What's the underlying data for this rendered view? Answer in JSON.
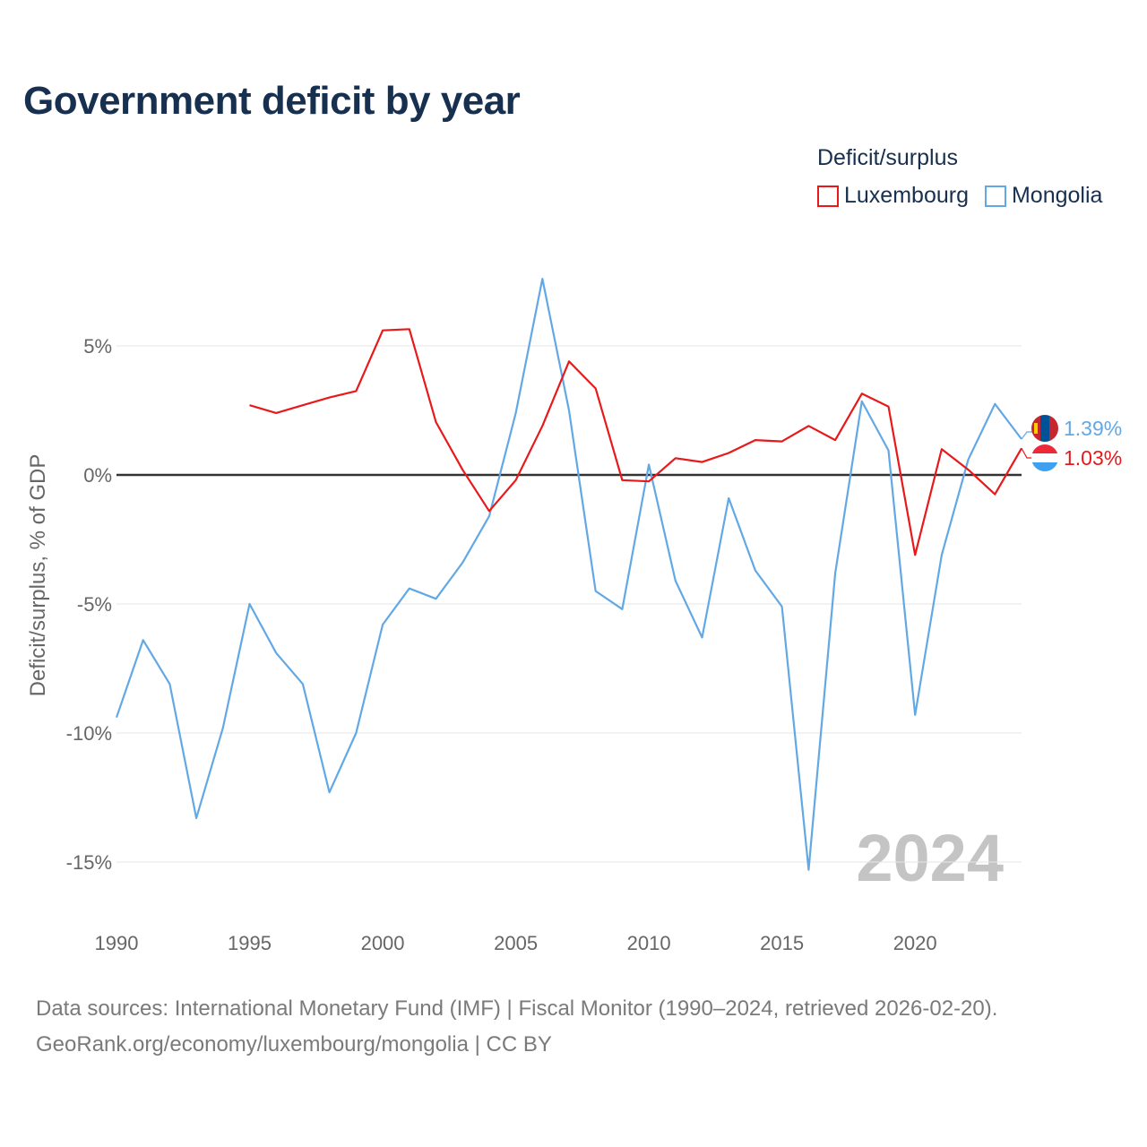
{
  "title": "Government deficit by year",
  "legend": {
    "title": "Deficit/surplus",
    "items": [
      {
        "label": "Luxembourg",
        "color": "#e8191a"
      },
      {
        "label": "Mongolia",
        "color": "#62a8e5"
      }
    ]
  },
  "footer": {
    "line1": "Data sources: International Monetary Fund (IMF) | Fiscal Monitor (1990–2024, retrieved 2026-02-20).",
    "line2": "GeoRank.org/economy/luxembourg/mongolia | CC BY"
  },
  "chart_data": {
    "type": "line",
    "ylabel": "Deficit/surplus, % of GDP",
    "xlabel": "",
    "xlim": [
      1990,
      2024
    ],
    "ylim": [
      -17,
      8
    ],
    "x_ticks": [
      1990,
      1995,
      2000,
      2005,
      2010,
      2015,
      2020
    ],
    "x_tick_labels": [
      "1990",
      "1995",
      "2000",
      "2005",
      "2010",
      "2015",
      "2020"
    ],
    "y_ticks": [
      5,
      0,
      -5,
      -10,
      -15
    ],
    "y_tick_labels": [
      "5%",
      "0%",
      "-5%",
      "-10%",
      "-15%"
    ],
    "watermark": "2024",
    "series": [
      {
        "name": "Luxembourg",
        "color": "#e8191a",
        "x": [
          1995,
          1996,
          1997,
          1998,
          1999,
          2000,
          2001,
          2002,
          2003,
          2004,
          2005,
          2006,
          2007,
          2008,
          2009,
          2010,
          2011,
          2012,
          2013,
          2014,
          2015,
          2016,
          2017,
          2018,
          2019,
          2020,
          2021,
          2022,
          2023,
          2024
        ],
        "values": [
          2.7,
          2.4,
          2.7,
          3.0,
          3.25,
          5.6,
          5.65,
          2.05,
          0.2,
          -1.4,
          -0.2,
          1.9,
          4.4,
          3.35,
          -0.2,
          -0.25,
          0.65,
          0.5,
          0.85,
          1.35,
          1.3,
          1.9,
          1.35,
          3.15,
          2.65,
          -3.1,
          1.0,
          0.2,
          -0.75,
          1.03
        ],
        "end_label": "1.03%"
      },
      {
        "name": "Mongolia",
        "color": "#62a8e5",
        "x": [
          1990,
          1991,
          1992,
          1993,
          1994,
          1995,
          1996,
          1997,
          1998,
          1999,
          2000,
          2001,
          2002,
          2003,
          2004,
          2005,
          2006,
          2007,
          2008,
          2009,
          2010,
          2011,
          2012,
          2013,
          2014,
          2015,
          2016,
          2017,
          2018,
          2019,
          2020,
          2021,
          2022,
          2023,
          2024
        ],
        "values": [
          -9.4,
          -6.4,
          -8.1,
          -13.3,
          -9.8,
          -5.0,
          -6.9,
          -8.1,
          -12.3,
          -10.0,
          -5.8,
          -4.4,
          -4.8,
          -3.4,
          -1.6,
          2.4,
          7.6,
          2.5,
          -4.5,
          -5.2,
          0.4,
          -4.1,
          -6.3,
          -0.9,
          -3.7,
          -5.1,
          -15.3,
          -3.8,
          2.85,
          0.95,
          -9.3,
          -3.1,
          0.6,
          2.75,
          1.39
        ],
        "end_label": "1.39%"
      }
    ]
  }
}
